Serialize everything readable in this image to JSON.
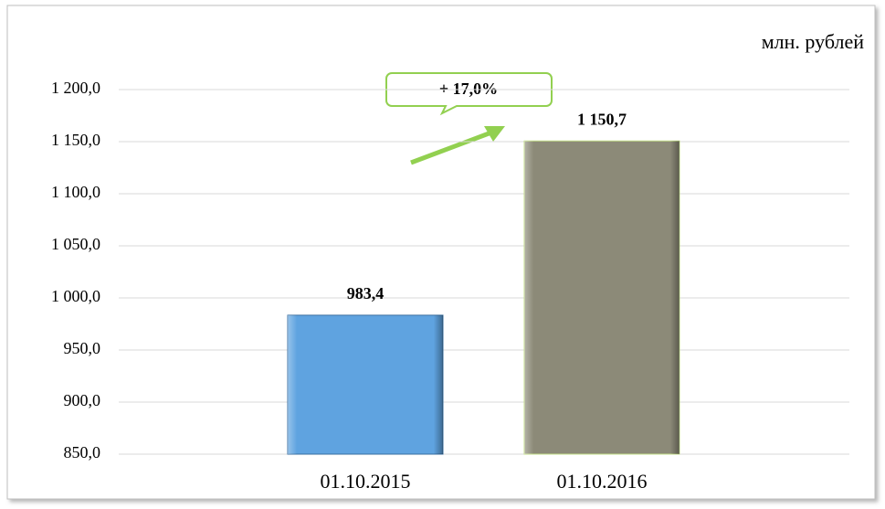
{
  "chart_data": {
    "type": "bar",
    "unit_label": "млн. рублей",
    "annotation": "+ 17,0%",
    "categories": [
      "01.10.2015",
      "01.10.2016"
    ],
    "values": [
      983.4,
      1150.7
    ],
    "value_labels": [
      "983,4",
      "1 150,7"
    ],
    "colors": [
      "#5fa3e0",
      "#8c8a78"
    ],
    "ylim": [
      850,
      1200
    ],
    "yticks": [
      {
        "value": 850,
        "label": "850,0"
      },
      {
        "value": 900,
        "label": "900,0"
      },
      {
        "value": 950,
        "label": "950,0"
      },
      {
        "value": 1000,
        "label": "1 000,0"
      },
      {
        "value": 1050,
        "label": "1 050,0"
      },
      {
        "value": 1100,
        "label": "1 100,0"
      },
      {
        "value": 1150,
        "label": "1 150,0"
      },
      {
        "value": 1200,
        "label": "1 200,0"
      }
    ],
    "grid": true
  }
}
